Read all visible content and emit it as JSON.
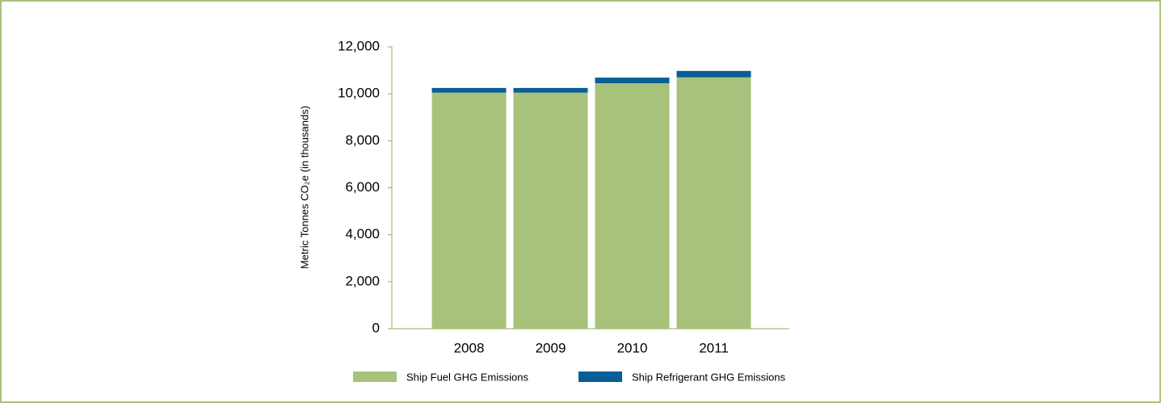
{
  "chart_data": {
    "type": "stacked_bar",
    "y_label": "Metric Tonnes CO₂e (in thousands)",
    "categories": [
      "2008",
      "2009",
      "2010",
      "2011"
    ],
    "series": [
      {
        "name": "Ship Fuel GHG Emissions",
        "color": "#a8c27b",
        "values": [
          10050,
          10050,
          10450,
          10700
        ]
      },
      {
        "name": "Ship Refrigerant GHG Emissions",
        "color": "#0a5e96",
        "values": [
          200,
          200,
          240,
          275
        ]
      }
    ],
    "ylim": [
      0,
      12000
    ],
    "yticks": [
      {
        "value": 0,
        "label": "0"
      },
      {
        "value": 2000,
        "label": "2,000"
      },
      {
        "value": 4000,
        "label": "4,000"
      },
      {
        "value": 6000,
        "label": "6,000"
      },
      {
        "value": 8000,
        "label": "8,000"
      },
      {
        "value": 10000,
        "label": "10,000"
      },
      {
        "value": 12000,
        "label": "12,000"
      }
    ],
    "grid": false
  }
}
